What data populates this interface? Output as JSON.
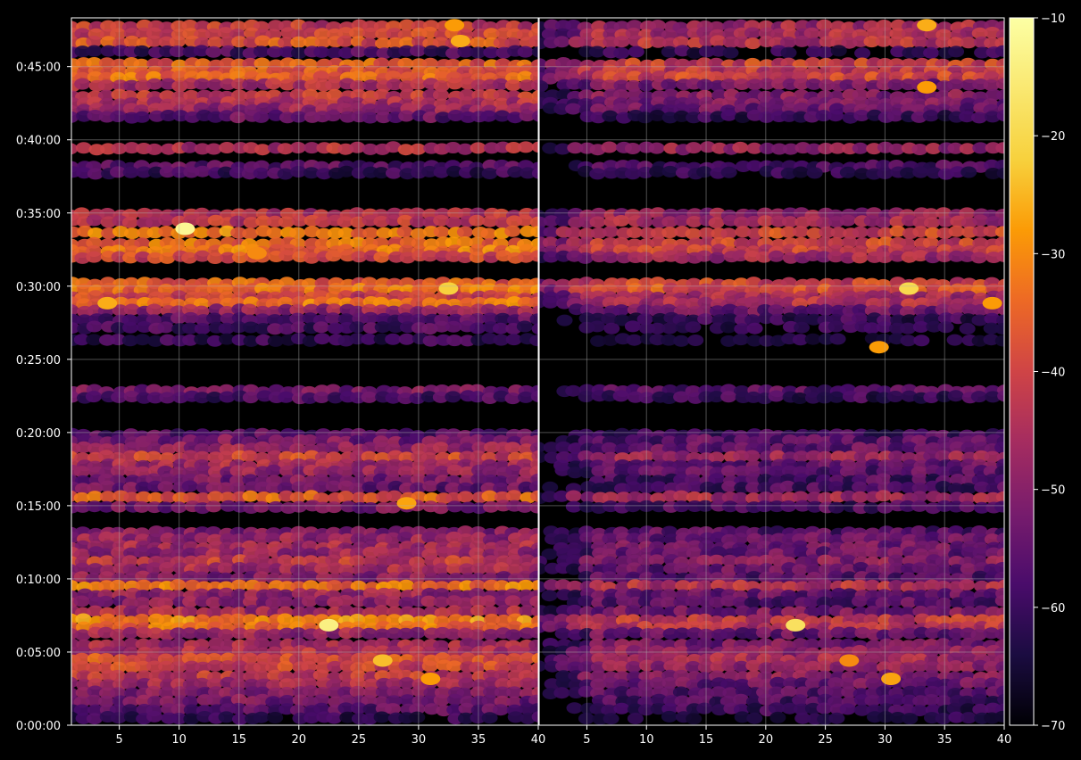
{
  "chart_data": {
    "type": "heatmap",
    "colormap": "inferno",
    "background_color": "#000000",
    "grid": true,
    "x_axis": {
      "range": [
        1,
        40
      ],
      "ticks": [
        5,
        10,
        15,
        20,
        25,
        30,
        35,
        40
      ],
      "tick_labels": [
        "5",
        "10",
        "15",
        "20",
        "25",
        "30",
        "35",
        "40"
      ]
    },
    "y_axis": {
      "range_seconds": [
        0,
        2900
      ],
      "ticks": [
        0,
        300,
        600,
        900,
        1200,
        1500,
        1800,
        2100,
        2400,
        2700
      ],
      "tick_labels": [
        "0:00:00",
        "0:05:00",
        "0:10:00",
        "0:15:00",
        "0:20:00",
        "0:25:00",
        "0:30:00",
        "0:35:00",
        "0:40:00",
        "0:45:00"
      ]
    },
    "colorbar": {
      "range": [
        -70,
        -10
      ],
      "ticks": [
        -10,
        -20,
        -30,
        -40,
        -50,
        -60,
        -70
      ],
      "tick_labels": [
        "−10",
        "−20",
        "−30",
        "−40",
        "−50",
        "−60",
        "−70"
      ]
    },
    "panels": [
      {
        "name": "left",
        "gain": 0,
        "bands": [
          {
            "t": 2865,
            "v": -42
          },
          {
            "t": 2835,
            "v": -40
          },
          {
            "t": 2800,
            "v": -38
          },
          {
            "t": 2760,
            "v": -58
          },
          {
            "t": 2710,
            "v": -36
          },
          {
            "t": 2680,
            "v": -37
          },
          {
            "t": 2655,
            "v": -34
          },
          {
            "t": 2625,
            "v": -45
          },
          {
            "t": 2580,
            "v": -42
          },
          {
            "t": 2550,
            "v": -44
          },
          {
            "t": 2525,
            "v": -48
          },
          {
            "t": 2495,
            "v": -55
          },
          {
            "t": 2365,
            "v": -44
          },
          {
            "t": 2290,
            "v": -56
          },
          {
            "t": 2265,
            "v": -60
          },
          {
            "t": 2095,
            "v": -44
          },
          {
            "t": 2065,
            "v": -42
          },
          {
            "t": 2020,
            "v": -32
          },
          {
            "t": 1975,
            "v": -34
          },
          {
            "t": 1945,
            "v": -33
          },
          {
            "t": 1920,
            "v": -40
          },
          {
            "t": 1810,
            "v": -36
          },
          {
            "t": 1785,
            "v": -34
          },
          {
            "t": 1755,
            "v": -40
          },
          {
            "t": 1730,
            "v": -33
          },
          {
            "t": 1700,
            "v": -48
          },
          {
            "t": 1665,
            "v": -56
          },
          {
            "t": 1630,
            "v": -58
          },
          {
            "t": 1580,
            "v": -61
          },
          {
            "t": 1370,
            "v": -52
          },
          {
            "t": 1345,
            "v": -58
          },
          {
            "t": 1190,
            "v": -56
          },
          {
            "t": 1165,
            "v": -52
          },
          {
            "t": 1135,
            "v": -48
          },
          {
            "t": 1100,
            "v": -40
          },
          {
            "t": 1065,
            "v": -46
          },
          {
            "t": 1040,
            "v": -48
          },
          {
            "t": 1005,
            "v": -52
          },
          {
            "t": 975,
            "v": -54
          },
          {
            "t": 935,
            "v": -36
          },
          {
            "t": 895,
            "v": -52
          },
          {
            "t": 790,
            "v": -50
          },
          {
            "t": 765,
            "v": -48
          },
          {
            "t": 730,
            "v": -46
          },
          {
            "t": 705,
            "v": -48
          },
          {
            "t": 672,
            "v": -42
          },
          {
            "t": 640,
            "v": -46
          },
          {
            "t": 605,
            "v": -50
          },
          {
            "t": 570,
            "v": -33
          },
          {
            "t": 535,
            "v": -48
          },
          {
            "t": 505,
            "v": -50
          },
          {
            "t": 465,
            "v": -46
          },
          {
            "t": 430,
            "v": -30
          },
          {
            "t": 400,
            "v": -34
          },
          {
            "t": 375,
            "v": -48
          },
          {
            "t": 330,
            "v": -46
          },
          {
            "t": 300,
            "v": -44
          },
          {
            "t": 270,
            "v": -38
          },
          {
            "t": 240,
            "v": -40
          },
          {
            "t": 200,
            "v": -42
          },
          {
            "t": 170,
            "v": -46
          },
          {
            "t": 135,
            "v": -50
          },
          {
            "t": 100,
            "v": -52
          },
          {
            "t": 65,
            "v": -56
          },
          {
            "t": 30,
            "v": -62
          }
        ],
        "hotspots": [
          {
            "x": 10.5,
            "t": 2035,
            "v": -12
          },
          {
            "x": 22.5,
            "t": 410,
            "v": -14
          },
          {
            "x": 32.5,
            "t": 1790,
            "v": -22
          },
          {
            "x": 33.5,
            "t": 2805,
            "v": -26
          },
          {
            "x": 4,
            "t": 1730,
            "v": -26
          },
          {
            "x": 27,
            "t": 265,
            "v": -24
          },
          {
            "x": 29,
            "t": 910,
            "v": -27
          },
          {
            "x": 33,
            "t": 2870,
            "v": -28
          },
          {
            "x": 16.5,
            "t": 1935,
            "v": -30
          },
          {
            "x": 31,
            "t": 190,
            "v": -28
          }
        ]
      },
      {
        "name": "right",
        "gain": -6,
        "bands": [
          {
            "t": 2865,
            "v": -46
          },
          {
            "t": 2835,
            "v": -45
          },
          {
            "t": 2800,
            "v": -44
          },
          {
            "t": 2760,
            "v": -62
          },
          {
            "t": 2710,
            "v": -40
          },
          {
            "t": 2680,
            "v": -42
          },
          {
            "t": 2655,
            "v": -40
          },
          {
            "t": 2625,
            "v": -52
          },
          {
            "t": 2580,
            "v": -50
          },
          {
            "t": 2550,
            "v": -52
          },
          {
            "t": 2525,
            "v": -54
          },
          {
            "t": 2495,
            "v": -60
          },
          {
            "t": 2365,
            "v": -48
          },
          {
            "t": 2290,
            "v": -58
          },
          {
            "t": 2265,
            "v": -62
          },
          {
            "t": 2095,
            "v": -48
          },
          {
            "t": 2065,
            "v": -46
          },
          {
            "t": 2020,
            "v": -40
          },
          {
            "t": 1975,
            "v": -40
          },
          {
            "t": 1945,
            "v": -40
          },
          {
            "t": 1920,
            "v": -46
          },
          {
            "t": 1810,
            "v": -40
          },
          {
            "t": 1785,
            "v": -38
          },
          {
            "t": 1755,
            "v": -46
          },
          {
            "t": 1730,
            "v": -44
          },
          {
            "t": 1700,
            "v": -54
          },
          {
            "t": 1665,
            "v": -60
          },
          {
            "t": 1630,
            "v": -62
          },
          {
            "t": 1580,
            "v": -64
          },
          {
            "t": 1370,
            "v": -56
          },
          {
            "t": 1345,
            "v": -60
          },
          {
            "t": 1190,
            "v": -58
          },
          {
            "t": 1165,
            "v": -56
          },
          {
            "t": 1135,
            "v": -54
          },
          {
            "t": 1100,
            "v": -48
          },
          {
            "t": 1065,
            "v": -54
          },
          {
            "t": 1040,
            "v": -56
          },
          {
            "t": 1005,
            "v": -58
          },
          {
            "t": 975,
            "v": -58
          },
          {
            "t": 935,
            "v": -46
          },
          {
            "t": 895,
            "v": -58
          },
          {
            "t": 790,
            "v": -56
          },
          {
            "t": 765,
            "v": -54
          },
          {
            "t": 730,
            "v": -52
          },
          {
            "t": 705,
            "v": -54
          },
          {
            "t": 672,
            "v": -50
          },
          {
            "t": 640,
            "v": -54
          },
          {
            "t": 605,
            "v": -56
          },
          {
            "t": 570,
            "v": -44
          },
          {
            "t": 535,
            "v": -54
          },
          {
            "t": 505,
            "v": -56
          },
          {
            "t": 465,
            "v": -52
          },
          {
            "t": 430,
            "v": -42
          },
          {
            "t": 400,
            "v": -44
          },
          {
            "t": 375,
            "v": -54
          },
          {
            "t": 330,
            "v": -52
          },
          {
            "t": 300,
            "v": -50
          },
          {
            "t": 270,
            "v": -46
          },
          {
            "t": 240,
            "v": -48
          },
          {
            "t": 200,
            "v": -50
          },
          {
            "t": 170,
            "v": -54
          },
          {
            "t": 135,
            "v": -56
          },
          {
            "t": 100,
            "v": -58
          },
          {
            "t": 65,
            "v": -60
          },
          {
            "t": 30,
            "v": -64
          }
        ],
        "hotspots": [
          {
            "x": 22.5,
            "t": 410,
            "v": -18
          },
          {
            "x": 32,
            "t": 1790,
            "v": -20
          },
          {
            "x": 33.5,
            "t": 2870,
            "v": -26
          },
          {
            "x": 33.5,
            "t": 2615,
            "v": -28
          },
          {
            "x": 29.5,
            "t": 1550,
            "v": -28
          },
          {
            "x": 30.5,
            "t": 190,
            "v": -27
          },
          {
            "x": 39,
            "t": 1730,
            "v": -28
          },
          {
            "x": 27,
            "t": 265,
            "v": -30
          }
        ]
      }
    ]
  }
}
